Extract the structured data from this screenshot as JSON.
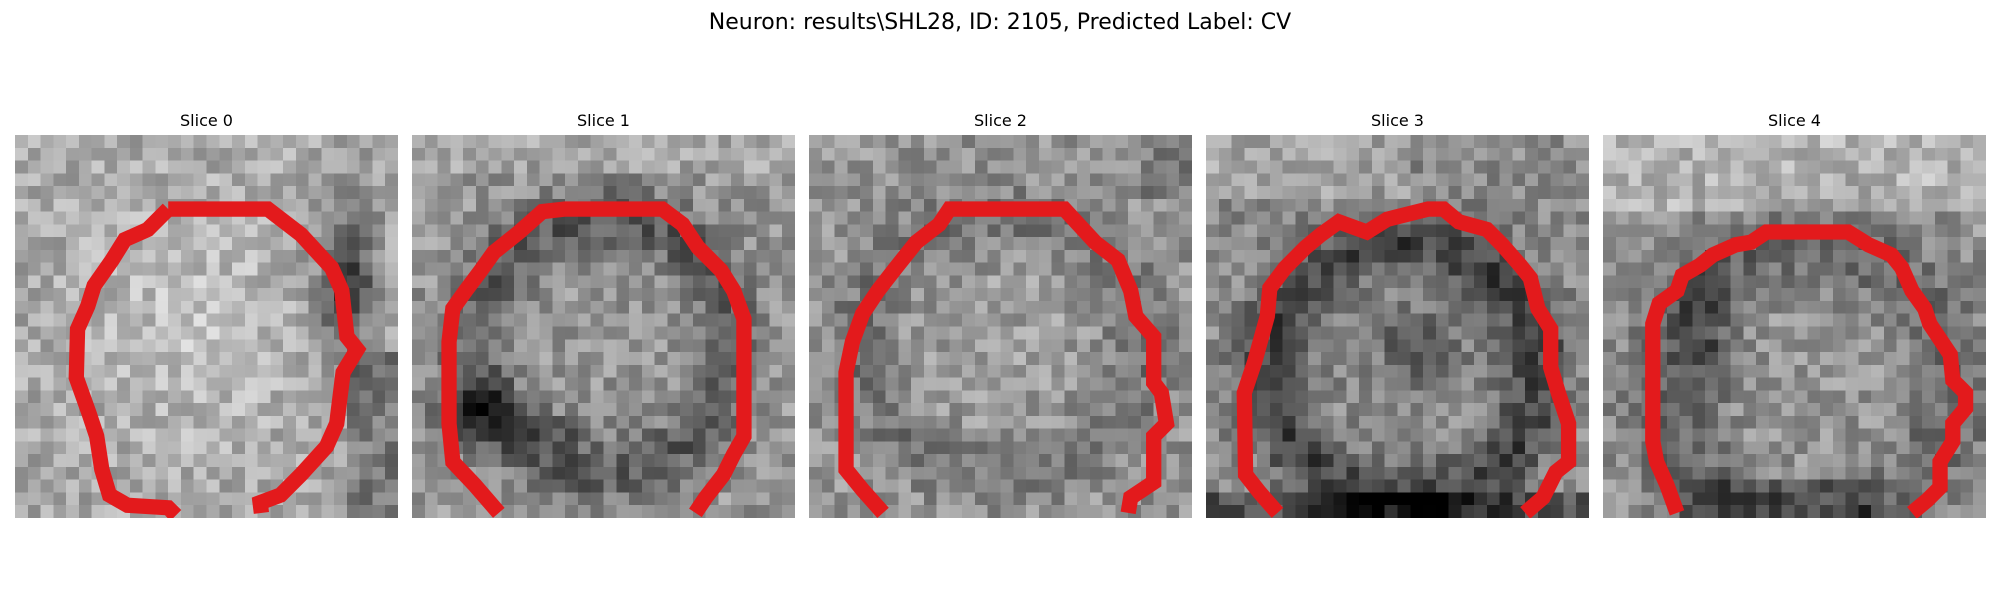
{
  "figure": {
    "title": "Neuron: results\\SHL28, ID: 2105, Predicted Label: CV"
  },
  "colors": {
    "outline": "#e31a1c",
    "background": "#ffffff"
  },
  "slices": [
    {
      "title": "Slice 0"
    },
    {
      "title": "Slice 1"
    },
    {
      "title": "Slice 2"
    },
    {
      "title": "Slice 3"
    },
    {
      "title": "Slice 4"
    }
  ]
}
